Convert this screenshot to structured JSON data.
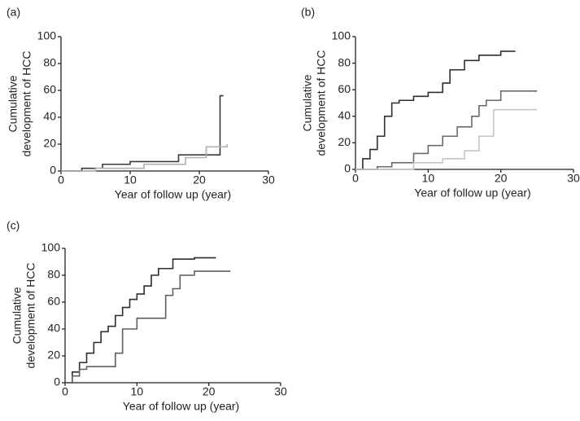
{
  "chart_data": [
    {
      "type": "line",
      "drawstyle": "steps-post",
      "panel_label": "(a)",
      "xlabel": "Year of follow up (year)",
      "ylabel": [
        "Cumulative",
        "development of HCC"
      ],
      "xlim": [
        0,
        30
      ],
      "ylim": [
        0,
        100
      ],
      "xticks": [
        0,
        10,
        20,
        30
      ],
      "yticks": [
        0,
        20,
        40,
        60,
        80,
        100
      ],
      "series": [
        {
          "color": "#3a3a3a",
          "x": [
            0,
            3,
            6,
            10,
            17,
            23,
            23.5
          ],
          "values": [
            0,
            2,
            5,
            7,
            12,
            56,
            56
          ]
        },
        {
          "color": "#b0b0b0",
          "x": [
            0,
            5,
            12,
            18,
            21,
            24
          ],
          "values": [
            0,
            2,
            5,
            10,
            18,
            20
          ]
        }
      ]
    },
    {
      "type": "line",
      "drawstyle": "steps-post",
      "panel_label": "(b)",
      "xlabel": "Year of follow up (year)",
      "ylabel": [
        "Cumulative",
        "development of HCC"
      ],
      "xlim": [
        0,
        30
      ],
      "ylim": [
        0,
        100
      ],
      "xticks": [
        0,
        10,
        20,
        30
      ],
      "yticks": [
        0,
        20,
        40,
        60,
        80,
        100
      ],
      "series": [
        {
          "color": "#2e2e2e",
          "x": [
            0,
            1,
            2,
            3,
            4,
            5,
            6,
            8,
            10,
            12,
            13,
            15,
            17,
            20,
            22
          ],
          "values": [
            0,
            8,
            15,
            25,
            40,
            50,
            52,
            55,
            58,
            65,
            75,
            82,
            86,
            89,
            89
          ]
        },
        {
          "color": "#6a6a6a",
          "x": [
            0,
            3,
            5,
            8,
            10,
            12,
            14,
            16,
            17,
            18,
            20,
            25
          ],
          "values": [
            0,
            2,
            5,
            12,
            18,
            25,
            32,
            40,
            48,
            52,
            59,
            59
          ]
        },
        {
          "color": "#c4c4c4",
          "x": [
            0,
            8,
            12,
            15,
            17,
            19,
            25
          ],
          "values": [
            0,
            5,
            8,
            14,
            25,
            45,
            45
          ]
        }
      ]
    },
    {
      "type": "line",
      "drawstyle": "steps-post",
      "panel_label": "(c)",
      "xlabel": "Year of follow up (year)",
      "ylabel": [
        "Cumulative",
        "development of HCC"
      ],
      "xlim": [
        0,
        30
      ],
      "ylim": [
        0,
        100
      ],
      "xticks": [
        0,
        10,
        20,
        30
      ],
      "yticks": [
        0,
        20,
        40,
        60,
        80,
        100
      ],
      "series": [
        {
          "color": "#2e2e2e",
          "x": [
            0,
            1,
            2,
            3,
            4,
            5,
            6,
            7,
            8,
            9,
            10,
            11,
            12,
            13,
            15,
            18,
            21
          ],
          "values": [
            0,
            8,
            15,
            22,
            30,
            38,
            42,
            50,
            56,
            62,
            66,
            72,
            80,
            85,
            92,
            93,
            93
          ]
        },
        {
          "color": "#5f5f5f",
          "x": [
            0,
            1,
            2,
            3,
            7,
            8,
            10,
            13,
            14,
            15,
            16,
            18,
            23
          ],
          "values": [
            0,
            5,
            10,
            12,
            22,
            40,
            48,
            48,
            65,
            70,
            80,
            83,
            83
          ]
        }
      ]
    }
  ]
}
